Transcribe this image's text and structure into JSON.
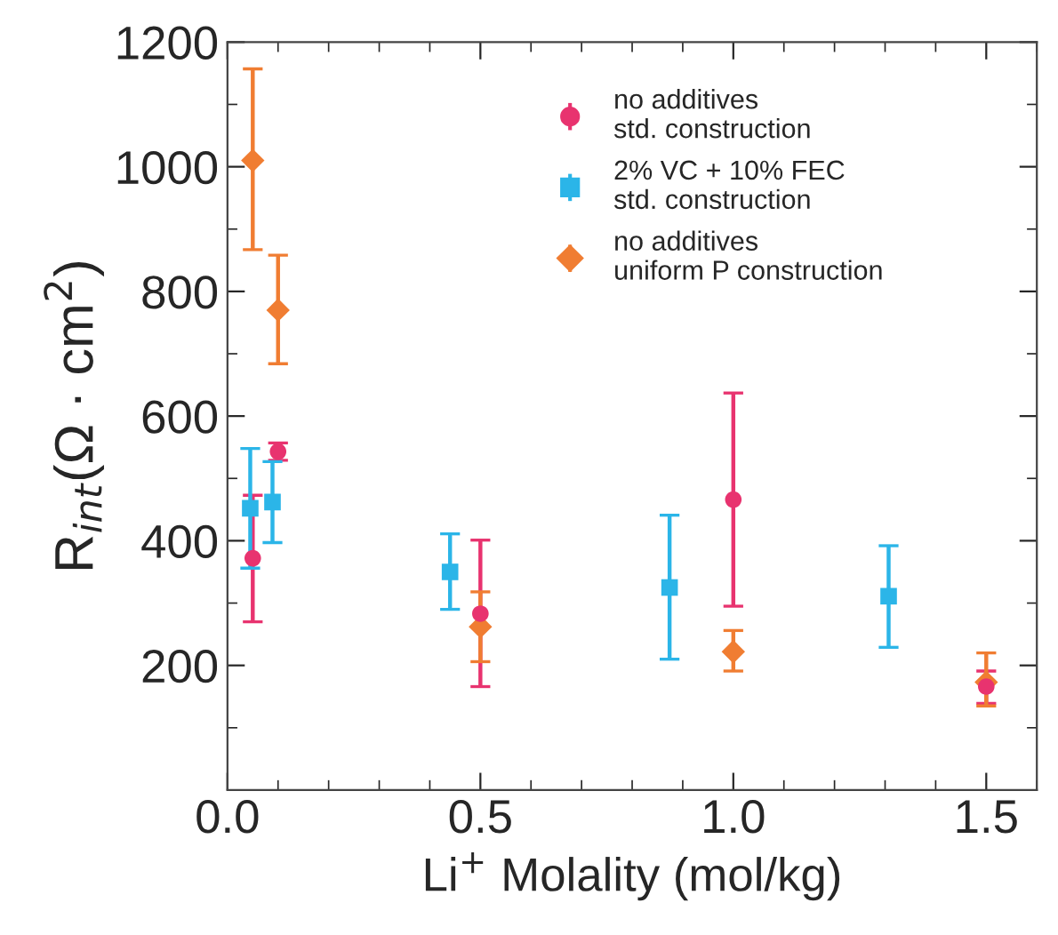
{
  "chart_data": {
    "type": "scatter",
    "xlabel": "Li$^{+}$ Molality (mol/kg)",
    "ylabel": "R$_{int}$(Ω · cm$^{2}$)",
    "xlim": [
      0,
      1.6
    ],
    "xticks": [
      {
        "value": 0,
        "label": "0.0"
      },
      0.5,
      {
        "value": 1,
        "label": "1.0"
      },
      1.5
    ],
    "ylim": [
      0,
      1200
    ],
    "yticks": [
      200,
      400,
      600,
      800,
      1000,
      1200
    ],
    "grid": false,
    "legend": "top",
    "series": [
      {
        "name": "no additives\nstd. construction",
        "color": "#e8336f",
        "marker": "circle",
        "x": [
          0.05,
          0.1,
          0.5,
          1.0,
          1.5
        ],
        "values": [
          372,
          543,
          283,
          466,
          166
        ],
        "errors": [
          [
            270,
            473
          ],
          [
            529,
            557
          ],
          [
            166,
            401
          ],
          [
            295,
            637
          ],
          [
            139,
            191
          ]
        ]
      },
      {
        "name": "2% VC + 10% FEC\nstd. construction",
        "color": "#2bb5e8",
        "marker": "square",
        "x": [
          0.045,
          0.089,
          0.44,
          0.874,
          1.307
        ],
        "values": [
          452,
          462,
          350,
          325,
          311
        ],
        "errors": [
          [
            356,
            548
          ],
          [
            397,
            527
          ],
          [
            290,
            411
          ],
          [
            210,
            441
          ],
          [
            229,
            392
          ]
        ]
      },
      {
        "name": "no additives\nuniform P construction",
        "color": "#f07d32",
        "marker": "diamond",
        "x": [
          0.05,
          0.1,
          0.5,
          1.0,
          1.5
        ],
        "values": [
          1010,
          770,
          262,
          222,
          173
        ],
        "errors": [
          [
            867,
            1157
          ],
          [
            684,
            858
          ],
          [
            206,
            318
          ],
          [
            191,
            256
          ],
          [
            135,
            220
          ]
        ]
      }
    ]
  }
}
